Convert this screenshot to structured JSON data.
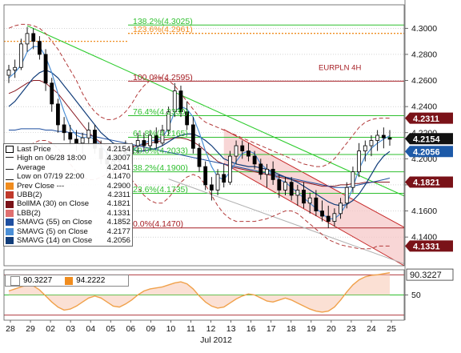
{
  "chart_data": {
    "type": "candlestick",
    "instrument_label": "EURPLN 4H",
    "xlabel": "Jul 2012",
    "x_tick_labels": [
      "28",
      "29",
      "02",
      "03",
      "04",
      "05",
      "06",
      "09",
      "10",
      "11",
      "12",
      "13",
      "16",
      "17",
      "18",
      "19",
      "20",
      "23",
      "24",
      "25"
    ],
    "y_tick_labels": [
      "4.3000",
      "4.2800",
      "4.2600",
      "4.2400",
      "4.2200",
      "4.2000",
      "4.1800",
      "4.1600",
      "4.1400"
    ],
    "ylim": [
      4.118,
      4.318
    ],
    "osc_tick_label": "50",
    "osc_ylim": [
      0,
      100
    ],
    "fib_labels": [
      {
        "text": "138.2%(4.3025)",
        "value": 4.3025
      },
      {
        "text": "123.6%(4.2961)",
        "value": 4.2961
      },
      {
        "text": "100.0%(4.2595)",
        "value": 4.2595
      },
      {
        "text": "76.4%(4.2330)",
        "value": 4.233
      },
      {
        "text": "61.8%(4.2165)",
        "value": 4.2165
      },
      {
        "text": "50.0%(4.2033)",
        "value": 4.2033
      },
      {
        "text": "38.2%(4.1900)",
        "value": 4.19
      },
      {
        "text": "23.6%(4.1735)",
        "value": 4.1735
      },
      {
        "text": "0.0%(4.1470)",
        "value": 4.147
      }
    ],
    "price_tags": [
      {
        "text": "4.2311",
        "value": 4.2311,
        "color": "#7a1218"
      },
      {
        "text": "4.2154",
        "value": 4.2154,
        "color": "#111111"
      },
      {
        "text": "4.2056",
        "value": 4.2056,
        "color": "#1d5aa8"
      },
      {
        "text": "4.1821",
        "value": 4.1821,
        "color": "#7a1218"
      },
      {
        "text": "4.1331",
        "value": 4.1331,
        "color": "#7a1218"
      }
    ],
    "osc_tag": {
      "text": "90.3227",
      "value": 90.3227
    },
    "osc_legend": [
      {
        "text": "90.3227",
        "color": "#ffffff"
      },
      {
        "text": "94.2222",
        "color": "#f08c1e"
      }
    ],
    "legend": [
      {
        "label": "Last Price",
        "value": "4.2154",
        "swatch": "candle"
      },
      {
        "label": "High on 06/28 18:00",
        "value": "4.3007",
        "swatch": "high"
      },
      {
        "label": "Average",
        "value": "4.2041",
        "swatch": "avg"
      },
      {
        "label": "Low on 07/19 22:00",
        "value": "4.1470",
        "swatch": "low"
      },
      {
        "label": "Prev Close ---",
        "value": "4.2900",
        "swatch": "#f08c1e"
      },
      {
        "label": "UBB(2)",
        "value": "4.2311",
        "swatch": "#c0392b"
      },
      {
        "label": "BollMA (30) on Close",
        "value": "4.1821",
        "swatch": "#7a1218"
      },
      {
        "label": "LBB(2)",
        "value": "4.1331",
        "swatch": "#e07070"
      },
      {
        "label": "SMAVG (55) on Close",
        "value": "4.1852",
        "swatch": "#1f4fa0"
      },
      {
        "label": "SMAVG (5) on Close",
        "value": "4.2177",
        "swatch": "#4b8fd6"
      },
      {
        "label": "SMAVG (14) on Close",
        "value": "4.2056",
        "swatch": "#123d7a"
      }
    ],
    "colors": {
      "fib_green": "#2fbf2f",
      "prev_close": "#f08c1e",
      "bb_red": "#a61e24",
      "channel_fill": "#f6c8c8",
      "trend_green": "#2ecc2e",
      "sma5": "#4b8fd6",
      "sma14": "#123d7a",
      "sma55": "#1f4fa0",
      "osc_orange": "#f0a14a",
      "candle": "#000000"
    },
    "candles": [
      [
        4.264,
        4.272,
        4.258,
        4.268
      ],
      [
        4.268,
        4.276,
        4.262,
        4.27
      ],
      [
        4.27,
        4.292,
        4.268,
        4.288
      ],
      [
        4.288,
        4.301,
        4.282,
        4.296
      ],
      [
        4.296,
        4.3,
        4.284,
        4.29
      ],
      [
        4.29,
        4.294,
        4.276,
        4.28
      ],
      [
        4.28,
        4.284,
        4.252,
        4.258
      ],
      [
        4.258,
        4.262,
        4.236,
        4.242
      ],
      [
        4.242,
        4.246,
        4.22,
        4.226
      ],
      [
        4.226,
        4.232,
        4.214,
        4.22
      ],
      [
        4.22,
        4.226,
        4.21,
        4.215
      ],
      [
        4.215,
        4.222,
        4.206,
        4.212
      ],
      [
        4.212,
        4.22,
        4.204,
        4.216
      ],
      [
        4.216,
        4.228,
        4.21,
        4.222
      ],
      [
        4.222,
        4.226,
        4.204,
        4.208
      ],
      [
        4.208,
        4.214,
        4.196,
        4.2
      ],
      [
        4.2,
        4.206,
        4.19,
        4.196
      ],
      [
        4.196,
        4.204,
        4.188,
        4.198
      ],
      [
        4.198,
        4.21,
        4.194,
        4.206
      ],
      [
        4.206,
        4.214,
        4.198,
        4.204
      ],
      [
        4.204,
        4.212,
        4.196,
        4.21
      ],
      [
        4.21,
        4.22,
        4.204,
        4.214
      ],
      [
        4.214,
        4.22,
        4.206,
        4.21
      ],
      [
        4.21,
        4.222,
        4.206,
        4.218
      ],
      [
        4.218,
        4.224,
        4.208,
        4.212
      ],
      [
        4.212,
        4.226,
        4.21,
        4.222
      ],
      [
        4.222,
        4.24,
        4.218,
        4.236
      ],
      [
        4.236,
        4.258,
        4.232,
        4.252
      ],
      [
        4.252,
        4.256,
        4.232,
        4.236
      ],
      [
        4.236,
        4.244,
        4.222,
        4.226
      ],
      [
        4.226,
        4.232,
        4.204,
        4.208
      ],
      [
        4.208,
        4.212,
        4.19,
        4.194
      ],
      [
        4.194,
        4.198,
        4.176,
        4.18
      ],
      [
        4.18,
        4.186,
        4.168,
        4.176
      ],
      [
        4.176,
        4.192,
        4.172,
        4.188
      ],
      [
        4.188,
        4.196,
        4.178,
        4.182
      ],
      [
        4.182,
        4.206,
        4.18,
        4.202
      ],
      [
        4.202,
        4.214,
        4.196,
        4.21
      ],
      [
        4.21,
        4.214,
        4.2,
        4.206
      ],
      [
        4.206,
        4.212,
        4.198,
        4.202
      ],
      [
        4.202,
        4.206,
        4.192,
        4.196
      ],
      [
        4.196,
        4.2,
        4.184,
        4.188
      ],
      [
        4.188,
        4.196,
        4.178,
        4.192
      ],
      [
        4.192,
        4.198,
        4.18,
        4.184
      ],
      [
        4.184,
        4.188,
        4.17,
        4.176
      ],
      [
        4.176,
        4.186,
        4.172,
        4.182
      ],
      [
        4.182,
        4.186,
        4.168,
        4.172
      ],
      [
        4.172,
        4.18,
        4.164,
        4.176
      ],
      [
        4.176,
        4.182,
        4.162,
        4.166
      ],
      [
        4.166,
        4.174,
        4.158,
        4.17
      ],
      [
        4.17,
        4.176,
        4.156,
        4.16
      ],
      [
        4.16,
        4.168,
        4.152,
        4.156
      ],
      [
        4.156,
        4.164,
        4.147,
        4.152
      ],
      [
        4.152,
        4.162,
        4.148,
        4.158
      ],
      [
        4.158,
        4.17,
        4.154,
        4.166
      ],
      [
        4.166,
        4.182,
        4.162,
        4.178
      ],
      [
        4.178,
        4.194,
        4.174,
        4.19
      ],
      [
        4.19,
        4.212,
        4.186,
        4.206
      ],
      [
        4.206,
        4.214,
        4.198,
        4.21
      ],
      [
        4.21,
        4.218,
        4.202,
        4.214
      ],
      [
        4.214,
        4.222,
        4.206,
        4.218
      ],
      [
        4.218,
        4.224,
        4.208,
        4.216
      ],
      [
        4.216,
        4.222,
        4.21,
        4.215
      ]
    ],
    "sma5": [
      4.262,
      4.266,
      4.272,
      4.282,
      4.286,
      4.286,
      4.278,
      4.266,
      4.25,
      4.236,
      4.224,
      4.218,
      4.216,
      4.217,
      4.215,
      4.21,
      4.204,
      4.2,
      4.202,
      4.203,
      4.205,
      4.21,
      4.212,
      4.214,
      4.214,
      4.216,
      4.224,
      4.236,
      4.24,
      4.238,
      4.232,
      4.22,
      4.206,
      4.194,
      4.186,
      4.184,
      4.19,
      4.198,
      4.204,
      4.206,
      4.204,
      4.196,
      4.192,
      4.188,
      4.184,
      4.182,
      4.178,
      4.174,
      4.17,
      4.166,
      4.162,
      4.158,
      4.154,
      4.154,
      4.158,
      4.166,
      4.178,
      4.192,
      4.202,
      4.208,
      4.212,
      4.215,
      4.2177
    ],
    "sma14": [
      4.24,
      4.244,
      4.25,
      4.256,
      4.262,
      4.266,
      4.268,
      4.266,
      4.262,
      4.256,
      4.25,
      4.244,
      4.238,
      4.232,
      4.226,
      4.22,
      4.216,
      4.212,
      4.21,
      4.208,
      4.207,
      4.206,
      4.206,
      4.207,
      4.208,
      4.21,
      4.213,
      4.216,
      4.218,
      4.219,
      4.219,
      4.217,
      4.214,
      4.21,
      4.205,
      4.2,
      4.198,
      4.196,
      4.195,
      4.194,
      4.194,
      4.193,
      4.192,
      4.19,
      4.188,
      4.186,
      4.184,
      4.182,
      4.179,
      4.176,
      4.173,
      4.17,
      4.167,
      4.165,
      4.164,
      4.165,
      4.168,
      4.173,
      4.18,
      4.188,
      4.196,
      4.202,
      4.2056
    ],
    "sma55": [
      4.222,
      4.222,
      4.223,
      4.223,
      4.223,
      4.223,
      4.222,
      4.222,
      4.221,
      4.221,
      4.22,
      4.22,
      4.219,
      4.218,
      4.217,
      4.216,
      4.215,
      4.214,
      4.213,
      4.212,
      4.211,
      4.21,
      4.209,
      4.208,
      4.207,
      4.206,
      4.205,
      4.204,
      4.203,
      4.202,
      4.201,
      4.2,
      4.199,
      4.198,
      4.197,
      4.196,
      4.195,
      4.194,
      4.193,
      4.192,
      4.191,
      4.19,
      4.189,
      4.188,
      4.187,
      4.186,
      4.185,
      4.184,
      4.183,
      4.182,
      4.181,
      4.18,
      4.179,
      4.178,
      4.178,
      4.178,
      4.179,
      4.18,
      4.181,
      4.182,
      4.183,
      4.184,
      4.1852
    ],
    "ubb": [
      4.3,
      4.302,
      4.303,
      4.303,
      4.302,
      4.3,
      4.296,
      4.29,
      4.284,
      4.276,
      4.268,
      4.26,
      4.25,
      4.242,
      4.236,
      4.232,
      4.23,
      4.23,
      4.232,
      4.236,
      4.242,
      4.25,
      4.256,
      4.26,
      4.262,
      4.262,
      4.26,
      4.256,
      4.25,
      4.244,
      4.238,
      4.232,
      4.228,
      4.226,
      4.224,
      4.222,
      4.22,
      4.218,
      4.216,
      4.214,
      4.212,
      4.21,
      4.208,
      4.206,
      4.204,
      4.202,
      4.2,
      4.198,
      4.196,
      4.195,
      4.194,
      4.194,
      4.196,
      4.2,
      4.206,
      4.212,
      4.218,
      4.224,
      4.228,
      4.23,
      4.231,
      4.2311,
      4.2311
    ],
    "bbma": [
      4.25,
      4.252,
      4.255,
      4.258,
      4.26,
      4.26,
      4.258,
      4.254,
      4.25,
      4.244,
      4.238,
      4.232,
      4.226,
      4.22,
      4.216,
      4.212,
      4.21,
      4.208,
      4.208,
      4.208,
      4.209,
      4.21,
      4.211,
      4.212,
      4.213,
      4.214,
      4.215,
      4.216,
      4.216,
      4.215,
      4.213,
      4.21,
      4.206,
      4.202,
      4.198,
      4.196,
      4.194,
      4.193,
      4.192,
      4.191,
      4.19,
      4.189,
      4.188,
      4.187,
      4.186,
      4.185,
      4.184,
      4.183,
      4.182,
      4.181,
      4.18,
      4.179,
      4.179,
      4.179,
      4.18,
      4.18,
      4.181,
      4.181,
      4.182,
      4.182,
      4.1821,
      4.1821,
      4.1821
    ],
    "lbb": [
      4.2,
      4.202,
      4.205,
      4.208,
      4.212,
      4.214,
      4.214,
      4.212,
      4.208,
      4.202,
      4.196,
      4.19,
      4.186,
      4.184,
      4.184,
      4.186,
      4.188,
      4.19,
      4.19,
      4.188,
      4.184,
      4.178,
      4.172,
      4.168,
      4.166,
      4.166,
      4.17,
      4.176,
      4.182,
      4.186,
      4.188,
      4.186,
      4.18,
      4.172,
      4.164,
      4.158,
      4.154,
      4.152,
      4.152,
      4.152,
      4.152,
      4.153,
      4.154,
      4.156,
      4.158,
      4.16,
      4.16,
      4.158,
      4.154,
      4.15,
      4.146,
      4.142,
      4.138,
      4.136,
      4.134,
      4.133,
      4.132,
      4.131,
      4.131,
      4.131,
      4.1331,
      4.1331,
      4.1331
    ],
    "osc": [
      58,
      62,
      66,
      70,
      68,
      60,
      48,
      36,
      26,
      20,
      22,
      28,
      36,
      44,
      48,
      44,
      36,
      28,
      26,
      32,
      40,
      50,
      58,
      62,
      64,
      66,
      70,
      74,
      76,
      72,
      62,
      48,
      36,
      28,
      24,
      26,
      34,
      42,
      48,
      52,
      50,
      44,
      38,
      36,
      40,
      44,
      40,
      34,
      28,
      22,
      18,
      16,
      18,
      26,
      40,
      56,
      70,
      80,
      86,
      89,
      90,
      92,
      94.2
    ]
  }
}
